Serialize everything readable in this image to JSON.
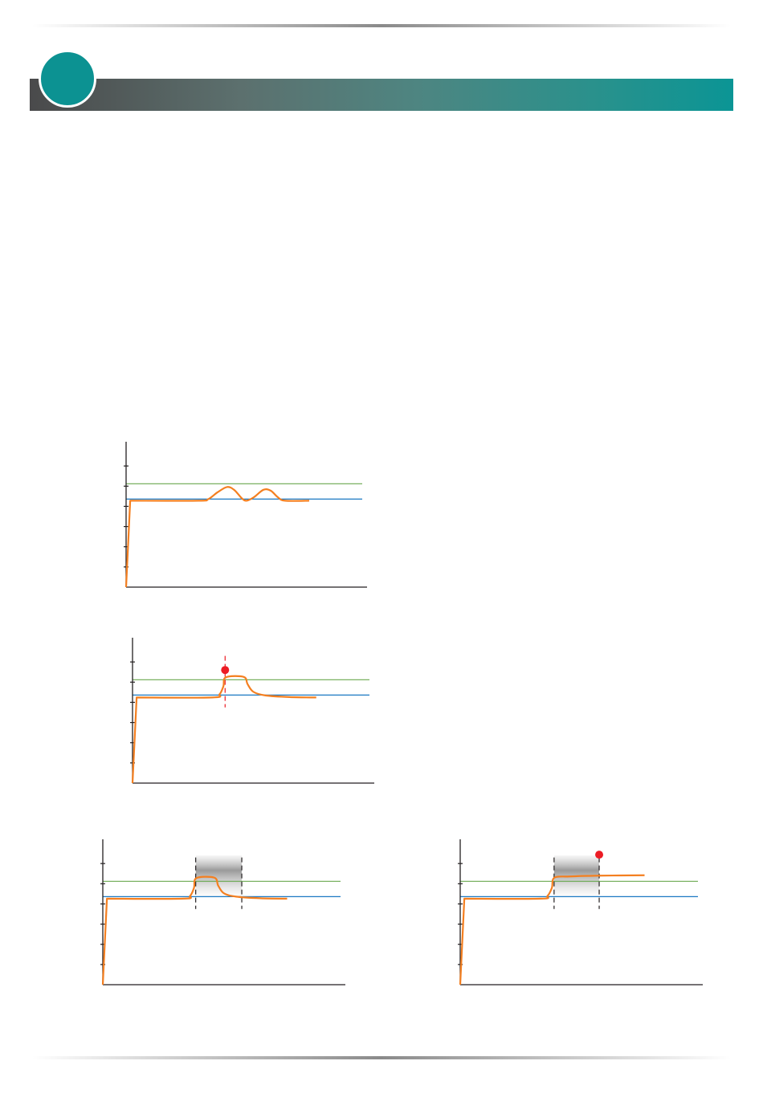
{
  "colors": {
    "accent": "#0c9292",
    "header_gradient_start": "#4a4a4b",
    "header_gradient_end": "#0b9595",
    "curve": "#f47f20",
    "upper_limit": "#6aa84f",
    "lower_limit": "#1a78c2",
    "marker": "#ec1c24",
    "axis": "#231f20"
  },
  "chart_data": [
    {
      "type": "line",
      "xlim": [
        0,
        100
      ],
      "ylim": [
        0,
        7.2
      ],
      "yticks": [
        1,
        2,
        3,
        4,
        5,
        6
      ],
      "grid": false,
      "hlines": [
        {
          "y": 5.12,
          "color": "upper_limit"
        },
        {
          "y": 4.36,
          "color": "lower_limit"
        }
      ],
      "series": [
        {
          "points": [
            [
              0,
              0
            ],
            [
              1.7,
              4.28
            ],
            [
              30,
              4.28
            ],
            [
              34,
              4.35
            ],
            [
              38,
              4.7
            ],
            [
              42,
              4.96
            ],
            [
              45,
              4.8
            ],
            [
              48,
              4.4
            ],
            [
              50,
              4.28
            ],
            [
              53,
              4.45
            ],
            [
              57,
              4.82
            ],
            [
              60,
              4.78
            ],
            [
              63,
              4.45
            ],
            [
              66,
              4.28
            ],
            [
              76,
              4.28
            ]
          ]
        }
      ]
    },
    {
      "type": "line",
      "xlim": [
        0,
        100
      ],
      "ylim": [
        0,
        7.2
      ],
      "yticks": [
        1,
        2,
        3,
        4,
        5,
        6
      ],
      "grid": false,
      "hlines": [
        {
          "y": 5.12,
          "color": "upper_limit"
        },
        {
          "y": 4.36,
          "color": "lower_limit"
        }
      ],
      "vlines": [
        {
          "x": 38.3,
          "style": "dashed",
          "color": "marker"
        }
      ],
      "markers": [
        {
          "x": 38.3,
          "y": 5.6,
          "color": "marker"
        }
      ],
      "series": [
        {
          "points": [
            [
              0,
              0
            ],
            [
              1.7,
              4.24
            ],
            [
              33,
              4.24
            ],
            [
              36,
              4.4
            ],
            [
              37.6,
              4.8
            ],
            [
              38.6,
              5.24
            ],
            [
              46,
              5.26
            ],
            [
              47.6,
              4.9
            ],
            [
              50,
              4.52
            ],
            [
              55,
              4.34
            ],
            [
              65,
              4.26
            ],
            [
              76,
              4.24
            ]
          ]
        }
      ]
    },
    {
      "type": "line",
      "xlim": [
        0,
        100
      ],
      "ylim": [
        0,
        7.2
      ],
      "yticks": [
        1,
        2,
        3,
        4,
        5,
        6
      ],
      "grid": false,
      "hlines": [
        {
          "y": 5.12,
          "color": "upper_limit"
        },
        {
          "y": 4.36,
          "color": "lower_limit"
        }
      ],
      "vlines": [
        {
          "x": 38.3,
          "style": "dashed",
          "color": "axis"
        },
        {
          "x": 57.3,
          "style": "dashed",
          "color": "axis"
        }
      ],
      "band": {
        "x": [
          38.3,
          57.3
        ],
        "y": [
          4.3,
          6.4
        ]
      },
      "series": [
        {
          "points": [
            [
              0,
              0
            ],
            [
              1.7,
              4.26
            ],
            [
              33,
              4.26
            ],
            [
              36,
              4.4
            ],
            [
              37.6,
              4.8
            ],
            [
              38.6,
              5.28
            ],
            [
              46,
              5.3
            ],
            [
              47.6,
              4.9
            ],
            [
              50,
              4.52
            ],
            [
              55,
              4.36
            ],
            [
              65,
              4.28
            ],
            [
              76,
              4.26
            ]
          ]
        }
      ]
    },
    {
      "type": "line",
      "xlim": [
        0,
        100
      ],
      "ylim": [
        0,
        7.2
      ],
      "yticks": [
        1,
        2,
        3,
        4,
        5,
        6
      ],
      "grid": false,
      "hlines": [
        {
          "y": 5.12,
          "color": "upper_limit"
        },
        {
          "y": 4.36,
          "color": "lower_limit"
        }
      ],
      "vlines": [
        {
          "x": 38.7,
          "style": "dashed",
          "color": "axis"
        },
        {
          "x": 57.3,
          "style": "dashed",
          "color": "axis"
        }
      ],
      "band": {
        "x": [
          38.7,
          57.3
        ],
        "y": [
          4.3,
          6.4
        ]
      },
      "markers": [
        {
          "x": 57.3,
          "y": 6.44,
          "color": "marker"
        }
      ],
      "series": [
        {
          "points": [
            [
              0,
              0
            ],
            [
              1.7,
              4.26
            ],
            [
              33,
              4.26
            ],
            [
              36,
              4.4
            ],
            [
              37.8,
              4.8
            ],
            [
              38.8,
              5.3
            ],
            [
              45,
              5.36
            ],
            [
              57,
              5.4
            ],
            [
              76,
              5.42
            ]
          ]
        }
      ]
    }
  ]
}
